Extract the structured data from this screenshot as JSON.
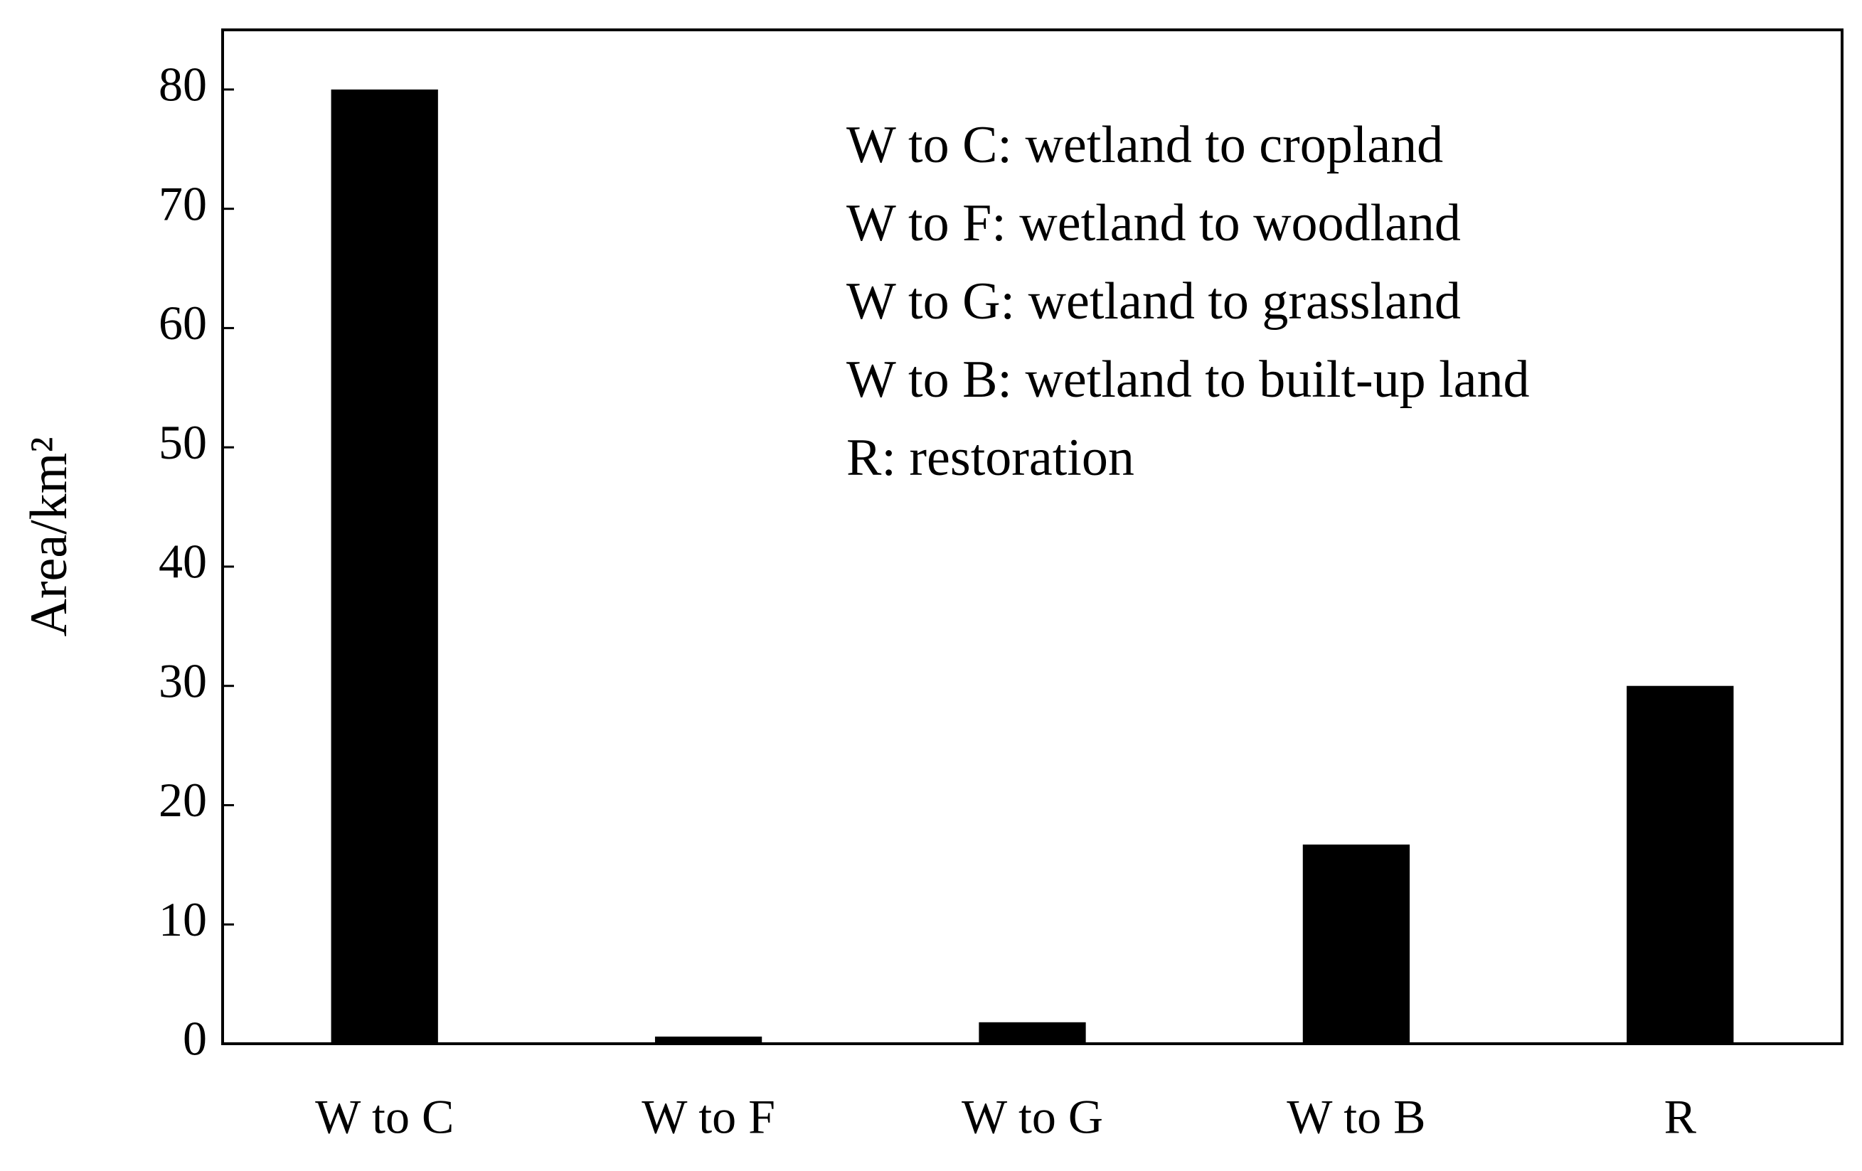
{
  "chart_data": {
    "type": "bar",
    "y_label": "Area/km²",
    "annotations": [
      "W to C: wetland to cropland",
      "W to F: wetland to woodland",
      "W to G: wetland to grassland",
      "W to B: wetland to built-up land",
      "R: restoration"
    ],
    "categories": [
      "W to C",
      "W to F",
      "W to G",
      "W to B",
      "R"
    ],
    "values": [
      80,
      0.6,
      1.8,
      16.7,
      30
    ],
    "color": "#000000",
    "ylim": [
      0,
      85
    ],
    "yticks": [
      0,
      10,
      20,
      30,
      40,
      50,
      60,
      70,
      80
    ],
    "grid": false
  }
}
